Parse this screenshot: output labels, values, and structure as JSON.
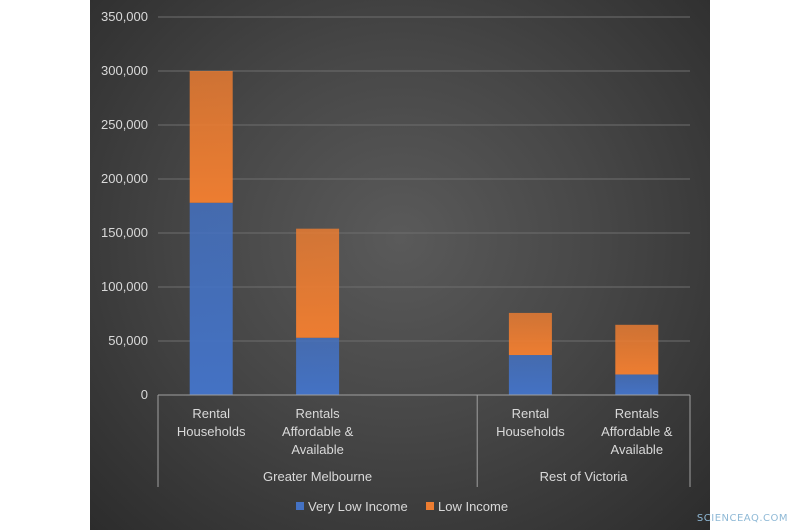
{
  "chart_data": {
    "type": "bar",
    "stacked": true,
    "title": "",
    "xlabel": "",
    "ylabel": "",
    "ylim": [
      0,
      350000
    ],
    "yticks": [
      "0",
      "50,000",
      "100,000",
      "150,000",
      "200,000",
      "250,000",
      "300,000",
      "350,000"
    ],
    "ytick_values": [
      0,
      50000,
      100000,
      150000,
      200000,
      250000,
      300000,
      350000
    ],
    "groups": [
      {
        "name": "Greater Melbourne",
        "categories": [
          [
            "Rental",
            "Households"
          ],
          [
            "Rentals",
            "Affordable &",
            "Available"
          ]
        ]
      },
      {
        "name": "Rest of Victoria",
        "categories": [
          [
            "Rental",
            "Households"
          ],
          [
            "Rentals",
            "Affordable &",
            "Available"
          ]
        ]
      }
    ],
    "series": [
      {
        "name": "Very Low Income",
        "color": "#4472c4",
        "values": [
          178000,
          53000,
          37000,
          19000
        ]
      },
      {
        "name": "Low Income",
        "color": "#ed7d31",
        "values": [
          122000,
          101000,
          39000,
          46000
        ]
      }
    ],
    "grid": true,
    "legend": "bottom"
  },
  "watermark": "SCIENCEAQ.COM"
}
